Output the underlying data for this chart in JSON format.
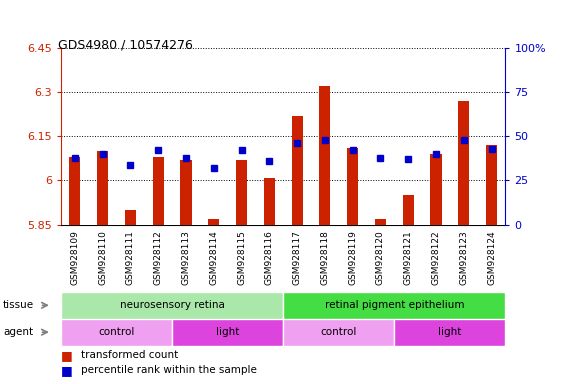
{
  "title": "GDS4980 / 10574276",
  "samples": [
    "GSM928109",
    "GSM928110",
    "GSM928111",
    "GSM928112",
    "GSM928113",
    "GSM928114",
    "GSM928115",
    "GSM928116",
    "GSM928117",
    "GSM928118",
    "GSM928119",
    "GSM928120",
    "GSM928121",
    "GSM928122",
    "GSM928123",
    "GSM928124"
  ],
  "red_values": [
    6.08,
    6.1,
    5.9,
    6.08,
    6.07,
    5.87,
    6.07,
    6.01,
    6.22,
    6.32,
    6.11,
    5.87,
    5.95,
    6.09,
    6.27,
    6.12
  ],
  "blue_values_pct": [
    38,
    40,
    34,
    42,
    38,
    32,
    42,
    36,
    46,
    48,
    42,
    38,
    37,
    40,
    48,
    43
  ],
  "ymin": 5.85,
  "ymax": 6.45,
  "yticks": [
    5.85,
    6.0,
    6.15,
    6.3,
    6.45
  ],
  "ytick_labels": [
    "5.85",
    "6",
    "6.15",
    "6.3",
    "6.45"
  ],
  "right_yticks": [
    0,
    25,
    50,
    75,
    100
  ],
  "right_ytick_labels": [
    "0",
    "25",
    "50",
    "75",
    "100%"
  ],
  "tissue_groups": [
    {
      "label": "neurosensory retina",
      "start": 0,
      "end": 8,
      "color": "#aae8aa"
    },
    {
      "label": "retinal pigment epithelium",
      "start": 8,
      "end": 16,
      "color": "#44dd44"
    }
  ],
  "agent_groups": [
    {
      "label": "control",
      "start": 0,
      "end": 4,
      "color": "#f0a0f0"
    },
    {
      "label": "light",
      "start": 4,
      "end": 8,
      "color": "#dd44dd"
    },
    {
      "label": "control",
      "start": 8,
      "end": 12,
      "color": "#f0a0f0"
    },
    {
      "label": "light",
      "start": 12,
      "end": 16,
      "color": "#dd44dd"
    }
  ],
  "bar_color": "#cc2200",
  "dot_color": "#0000cc",
  "sample_bg_color": "#c8c8c8",
  "left_tick_color": "#cc2200",
  "right_tick_color": "#0000cc"
}
